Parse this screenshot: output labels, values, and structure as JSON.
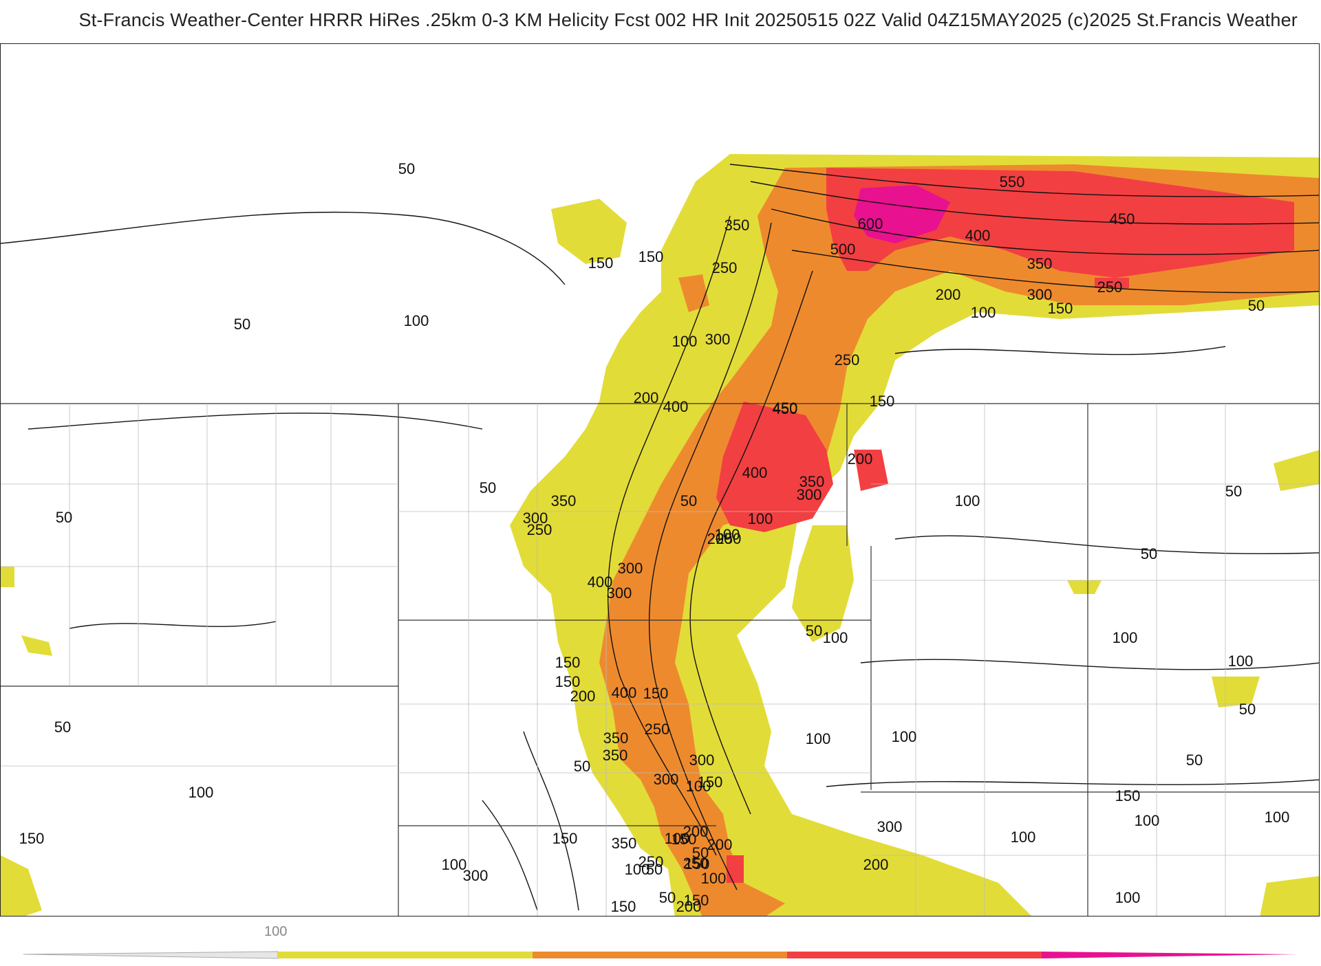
{
  "header": {
    "title": "St-Francis Weather-Center HRRR HiRes .25km 0-3 KM Helicity Fcst 002 HR Init 20250515 02Z  Valid 04Z15MAY2025    (c)2025 St.Francis Weather"
  },
  "colors": {
    "fill_yellow": "#e2dc38",
    "fill_orange": "#ee8a2e",
    "fill_red": "#f23f42",
    "fill_magenta": "#e8118f",
    "line": "#111111"
  },
  "colorbar": {
    "tick_label": "100",
    "bands": [
      {
        "color": "#e2dc38"
      },
      {
        "color": "#ee8a2e"
      },
      {
        "color": "#f23f42"
      },
      {
        "color": "#e8118f"
      }
    ]
  },
  "contour_labels": [
    "50",
    "100",
    "150",
    "150",
    "250",
    "350",
    "300",
    "100",
    "50",
    "100",
    "600",
    "500",
    "550",
    "400",
    "450",
    "350",
    "300",
    "250",
    "200",
    "150",
    "50",
    "450",
    "100",
    "250",
    "150",
    "200",
    "400",
    "450",
    "200",
    "400",
    "350",
    "300",
    "100",
    "50",
    "350",
    "300",
    "250",
    "100",
    "200",
    "300",
    "250",
    "100",
    "50",
    "50",
    "50",
    "50",
    "50",
    "100",
    "400",
    "300",
    "150",
    "150",
    "100",
    "50",
    "100",
    "100",
    "100",
    "350",
    "400",
    "250",
    "150",
    "200",
    "350",
    "300",
    "300",
    "150",
    "100",
    "50",
    "50",
    "150",
    "100",
    "50",
    "100",
    "150",
    "100",
    "300",
    "200",
    "250",
    "350",
    "100",
    "250",
    "200",
    "150",
    "150",
    "200",
    "200",
    "100",
    "50",
    "150",
    "100",
    "150",
    "100",
    "300",
    "50",
    "150",
    "100",
    "50"
  ]
}
